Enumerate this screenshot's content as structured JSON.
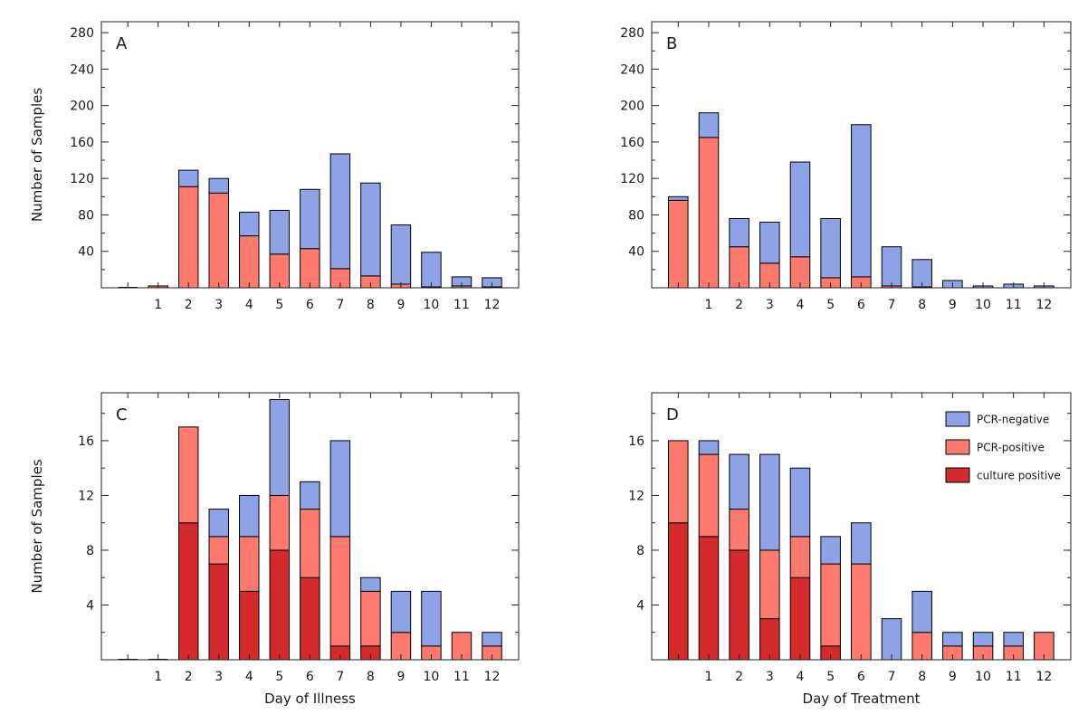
{
  "colors": {
    "pcr_negative": "#8ea2e6",
    "pcr_positive": "#fe7a6f",
    "culture_positive": "#d42a2c",
    "frame": "#222222"
  },
  "chart_data": [
    {
      "type": "bar",
      "stacked": true,
      "panel": "A",
      "categories": [
        "",
        "1",
        "2",
        "3",
        "4",
        "5",
        "6",
        "7",
        "8",
        "9",
        "10",
        "11",
        "12"
      ],
      "series": [
        {
          "key": "pcr_positive",
          "color": "#fe7a6f",
          "values": [
            0,
            2,
            111,
            104,
            57,
            37,
            43,
            21,
            13,
            4,
            1,
            2,
            1
          ]
        },
        {
          "key": "pcr_negative",
          "color": "#8ea2e6",
          "values": [
            0,
            0,
            18,
            16,
            26,
            48,
            65,
            126,
            102,
            65,
            38,
            10,
            10
          ]
        }
      ],
      "yticks": [
        40,
        80,
        120,
        160,
        200,
        240,
        280
      ],
      "ylim": [
        0,
        292
      ],
      "ylabel": "Number of Samples",
      "xlabel": ""
    },
    {
      "type": "bar",
      "stacked": true,
      "panel": "B",
      "categories": [
        "",
        "1",
        "2",
        "3",
        "4",
        "5",
        "6",
        "7",
        "8",
        "9",
        "10",
        "11",
        "12"
      ],
      "series": [
        {
          "key": "pcr_positive",
          "color": "#fe7a6f",
          "values": [
            96,
            165,
            45,
            27,
            34,
            11,
            12,
            2,
            1,
            0,
            0,
            0,
            0
          ]
        },
        {
          "key": "pcr_negative",
          "color": "#8ea2e6",
          "values": [
            4,
            27,
            31,
            45,
            104,
            65,
            167,
            43,
            30,
            8,
            2,
            4,
            2
          ]
        }
      ],
      "yticks": [
        40,
        80,
        120,
        160,
        200,
        240,
        280
      ],
      "ylim": [
        0,
        292
      ],
      "ylabel": "",
      "xlabel": ""
    },
    {
      "type": "bar",
      "stacked": true,
      "panel": "C",
      "categories": [
        "",
        "1",
        "2",
        "3",
        "4",
        "5",
        "6",
        "7",
        "8",
        "9",
        "10",
        "11",
        "12"
      ],
      "series": [
        {
          "key": "culture_positive",
          "color": "#d42a2c",
          "values": [
            0,
            0,
            10,
            7,
            5,
            8,
            6,
            1,
            1,
            0,
            0,
            0,
            0
          ]
        },
        {
          "key": "pcr_positive",
          "color": "#fe7a6f",
          "values": [
            0,
            0,
            7,
            2,
            4,
            4,
            5,
            8,
            4,
            2,
            1,
            2,
            1
          ]
        },
        {
          "key": "pcr_negative",
          "color": "#8ea2e6",
          "values": [
            0,
            0,
            0,
            2,
            3,
            7,
            2,
            7,
            1,
            3,
            4,
            0,
            1
          ]
        }
      ],
      "yticks": [
        4,
        8,
        12,
        16
      ],
      "ylim": [
        0,
        19.5
      ],
      "ylabel": "Number of Samples",
      "xlabel": "Day of Illness"
    },
    {
      "type": "bar",
      "stacked": true,
      "panel": "D",
      "categories": [
        "",
        "1",
        "2",
        "3",
        "4",
        "5",
        "6",
        "7",
        "8",
        "9",
        "10",
        "11",
        "12"
      ],
      "series": [
        {
          "key": "culture_positive",
          "color": "#d42a2c",
          "values": [
            10,
            9,
            8,
            3,
            6,
            1,
            0,
            0,
            0,
            0,
            0,
            0,
            0
          ]
        },
        {
          "key": "pcr_positive",
          "color": "#fe7a6f",
          "values": [
            6,
            6,
            3,
            5,
            3,
            6,
            7,
            0,
            2,
            1,
            1,
            1,
            2
          ]
        },
        {
          "key": "pcr_negative",
          "color": "#8ea2e6",
          "values": [
            0,
            1,
            4,
            7,
            5,
            2,
            3,
            3,
            3,
            1,
            1,
            1,
            0
          ]
        }
      ],
      "yticks": [
        4,
        8,
        12,
        16
      ],
      "ylim": [
        0,
        19.5
      ],
      "ylabel": "",
      "xlabel": "Day of Treatment",
      "legend": {
        "placement": "top-right",
        "entries": [
          {
            "label": "PCR-negative",
            "color": "#8ea2e6"
          },
          {
            "label": "PCR-positive",
            "color": "#fe7a6f"
          },
          {
            "label": "culture positive",
            "color": "#d42a2c"
          }
        ]
      }
    }
  ]
}
